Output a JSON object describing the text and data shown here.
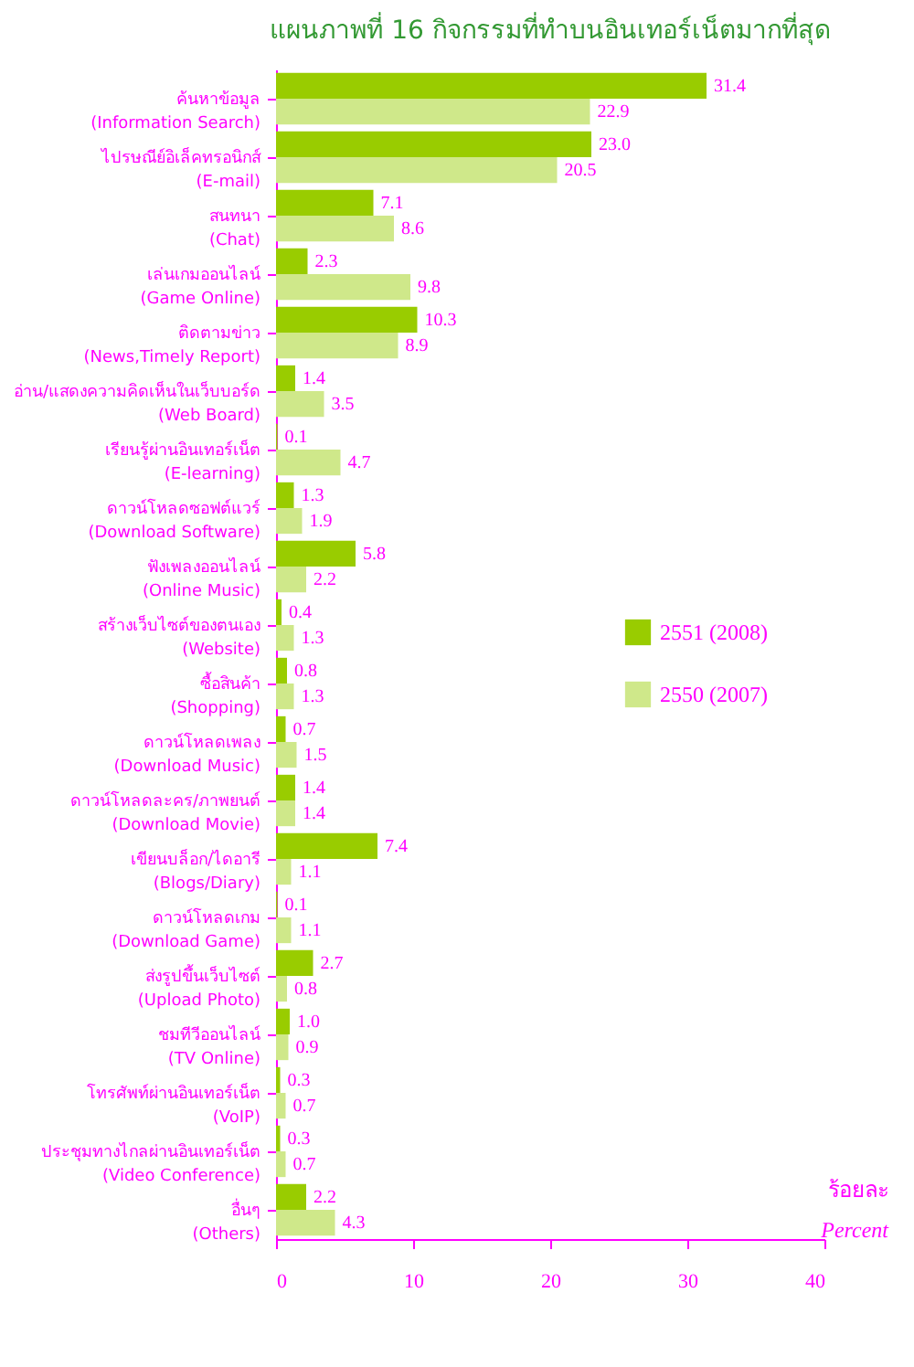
{
  "chart_data": {
    "type": "bar",
    "orientation": "horizontal",
    "title": "แผนภาพที่ 16 กิจกรรมที่ทำบนอินเทอร์เน็ตมากที่สุด",
    "categories": [
      "ค้นหาข้อมูล\n(Information Search)",
      "ไปรษณีย์อิเล็คทรอนิกส์\n(E-mail)",
      "สนทนา\n(Chat)",
      "เล่นเกมออนไลน์\n(Game Online)",
      "ติดตามข่าว\n(News,Timely Report)",
      "อ่าน/แสดงความคิดเห็นในเว็บบอร์ด\n(Web Board)",
      "เรียนรู้ผ่านอินเทอร์เน็ต\n(E-learning)",
      "ดาวน์โหลดซอฟต์แวร์\n(Download Software)",
      "ฟังเพลงออนไลน์\n(Online Music)",
      "สร้างเว็บไซต์ของตนเอง\n(Website)",
      "ซื้อสินค้า\n(Shopping)",
      "ดาวน์โหลดเพลง\n(Download Music)",
      "ดาวน์โหลดละคร/ภาพยนต์\n(Download Movie)",
      "เขียนบล็อก/ไดอารี\n(Blogs/Diary)",
      "ดาวน์โหลดเกม\n(Download Game)",
      "ส่งรูปขึ้นเว็บไซต์\n(Upload Photo)",
      "ชมทีวีออนไลน์\n(TV Online)",
      "โทรศัพท์ผ่านอินเทอร์เน็ต\n(VoIP)",
      "ประชุมทางไกลผ่านอินเทอร์เน็ต\n(Video Conference)",
      "อื่นๆ\n(Others)"
    ],
    "series": [
      {
        "name": "2551 (2008)",
        "color": "#99cc00",
        "values": [
          31.4,
          23.0,
          7.1,
          2.3,
          10.3,
          1.4,
          0.1,
          1.3,
          5.8,
          0.4,
          0.8,
          0.7,
          1.4,
          7.4,
          0.1,
          2.7,
          1.0,
          0.3,
          0.3,
          2.2
        ],
        "value_labels": [
          "31.4",
          "23.0",
          "7.1",
          "2.3",
          "10.3",
          "1.4",
          "0.1",
          "1.3",
          "5.8",
          "0.4",
          "0.8",
          "0.7",
          "1.4",
          "7.4",
          "0.1",
          "2.7",
          "1.0",
          "0.3",
          "0.3",
          "2.2"
        ]
      },
      {
        "name": "2550 (2007)",
        "color": "#cfe88a",
        "values": [
          22.9,
          20.5,
          8.6,
          9.8,
          8.9,
          3.5,
          4.7,
          1.9,
          2.2,
          1.3,
          1.3,
          1.5,
          1.4,
          1.1,
          1.1,
          0.8,
          0.9,
          0.7,
          0.7,
          4.3
        ],
        "value_labels": [
          "22.9",
          "20.5",
          "8.6",
          "9.8",
          "8.9",
          "3.5",
          "4.7",
          "1.9",
          "2.2",
          "1.3",
          "1.3",
          "1.5",
          "1.4",
          "1.1",
          "1.1",
          "0.8",
          "0.9",
          "0.7",
          "0.7",
          "4.3"
        ]
      }
    ],
    "xlim": [
      0,
      40
    ],
    "xticks": [
      0,
      10,
      20,
      30,
      40
    ],
    "grid": false,
    "legend": "right",
    "annotations": [
      "ร้อยละ",
      "Percent"
    ]
  }
}
